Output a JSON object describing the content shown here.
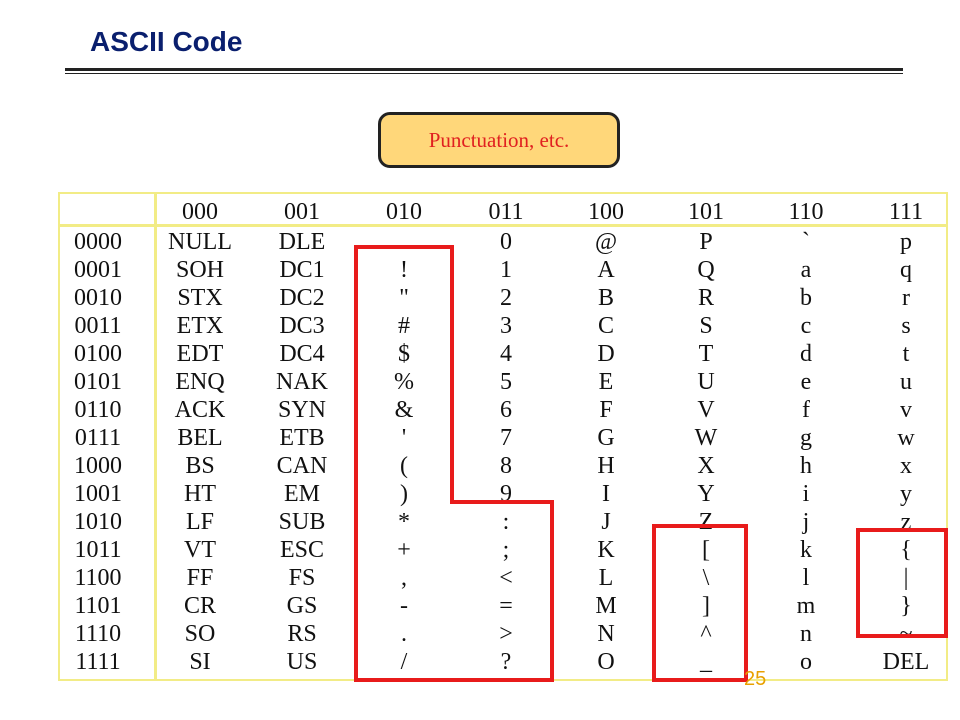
{
  "slide": {
    "title": "ASCII Code",
    "callout": "Punctuation, etc.",
    "page_number": "25"
  },
  "table": {
    "col_headers": [
      "000",
      "001",
      "010",
      "011",
      "100",
      "101",
      "110",
      "111"
    ],
    "rows": [
      {
        "code": "0000",
        "cells": [
          "NULL",
          "DLE",
          "",
          "0",
          "@",
          "P",
          "`",
          "p"
        ]
      },
      {
        "code": "0001",
        "cells": [
          "SOH",
          "DC1",
          "!",
          "1",
          "A",
          "Q",
          "a",
          "q"
        ]
      },
      {
        "code": "0010",
        "cells": [
          "STX",
          "DC2",
          "\"",
          "2",
          "B",
          "R",
          "b",
          "r"
        ]
      },
      {
        "code": "0011",
        "cells": [
          "ETX",
          "DC3",
          "#",
          "3",
          "C",
          "S",
          "c",
          "s"
        ]
      },
      {
        "code": "0100",
        "cells": [
          "EDT",
          "DC4",
          "$",
          "4",
          "D",
          "T",
          "d",
          "t"
        ]
      },
      {
        "code": "0101",
        "cells": [
          "ENQ",
          "NAK",
          "%",
          "5",
          "E",
          "U",
          "e",
          "u"
        ]
      },
      {
        "code": "0110",
        "cells": [
          "ACK",
          "SYN",
          "&",
          "6",
          "F",
          "V",
          "f",
          "v"
        ]
      },
      {
        "code": "0111",
        "cells": [
          "BEL",
          "ETB",
          "'",
          "7",
          "G",
          "W",
          "g",
          "w"
        ]
      },
      {
        "code": "1000",
        "cells": [
          "BS",
          "CAN",
          "(",
          "8",
          "H",
          "X",
          "h",
          "x"
        ]
      },
      {
        "code": "1001",
        "cells": [
          "HT",
          "EM",
          ")",
          "9",
          "I",
          "Y",
          "i",
          "y"
        ]
      },
      {
        "code": "1010",
        "cells": [
          "LF",
          "SUB",
          "*",
          ":",
          "J",
          "Z",
          "j",
          "z"
        ]
      },
      {
        "code": "1011",
        "cells": [
          "VT",
          "ESC",
          "+",
          ";",
          "K",
          "[",
          "k",
          "{"
        ]
      },
      {
        "code": "1100",
        "cells": [
          "FF",
          "FS",
          ",",
          "<",
          "L",
          "\\",
          "l",
          "|"
        ]
      },
      {
        "code": "1101",
        "cells": [
          "CR",
          "GS",
          "-",
          "=",
          "M",
          "]",
          "m",
          "}"
        ]
      },
      {
        "code": "1110",
        "cells": [
          "SO",
          "RS",
          ".",
          ">",
          "N",
          "^",
          "n",
          "~"
        ]
      },
      {
        "code": "1111",
        "cells": [
          "SI",
          "US",
          "/",
          "?",
          "O",
          "_",
          "o",
          "DEL"
        ]
      }
    ]
  },
  "colors": {
    "title": "#0a1f6e",
    "callout_fill": "#ffd77a",
    "callout_text": "#e02020",
    "highlight": "#e81b1b",
    "grid": "#f2ec86",
    "page_number": "#e8a000"
  }
}
